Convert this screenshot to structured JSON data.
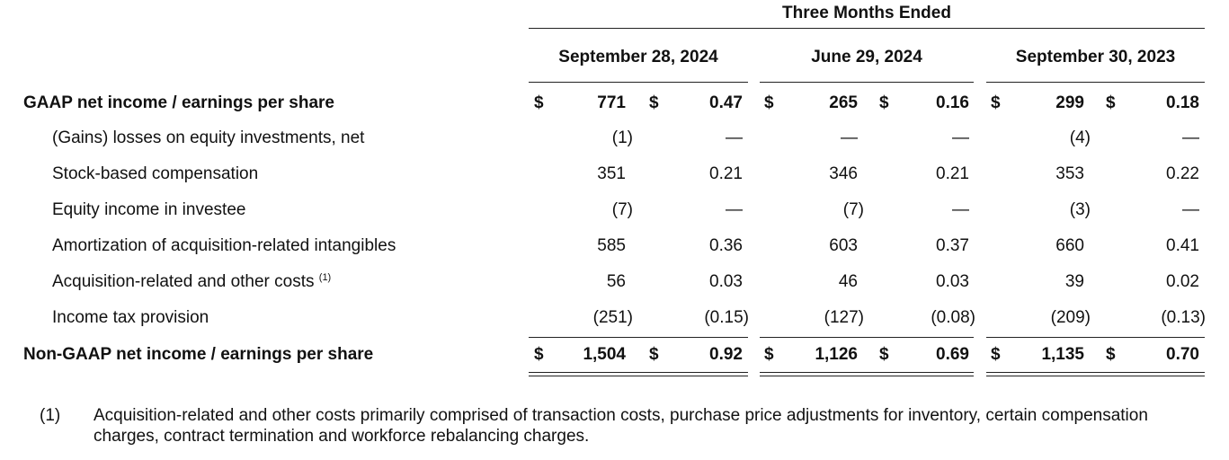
{
  "header": {
    "super_title": "Three Months Ended",
    "periods": [
      "September 28, 2024",
      "June 29, 2024",
      "September 30, 2023"
    ]
  },
  "rows": [
    {
      "label": "GAAP net income / earnings per share",
      "bold": true,
      "currency": true,
      "values": [
        "771",
        "0.47",
        "265",
        "0.16",
        "299",
        "0.18"
      ]
    },
    {
      "label": "(Gains) losses on equity investments, net",
      "values": [
        "(1)",
        "—",
        "—",
        "—",
        "(4)",
        "—"
      ]
    },
    {
      "label": "Stock-based compensation",
      "values": [
        "351",
        "0.21",
        "346",
        "0.21",
        "353",
        "0.22"
      ]
    },
    {
      "label": "Equity income in investee",
      "values": [
        "(7)",
        "—",
        "(7)",
        "—",
        "(3)",
        "—"
      ]
    },
    {
      "label": "Amortization of acquisition-related intangibles",
      "values": [
        "585",
        "0.36",
        "603",
        "0.37",
        "660",
        "0.41"
      ]
    },
    {
      "label": "Acquisition-related and other costs",
      "footnote_ref": "(1)",
      "values": [
        "56",
        "0.03",
        "46",
        "0.03",
        "39",
        "0.02"
      ]
    },
    {
      "label": "Income tax provision",
      "values": [
        "(251)",
        "(0.15)",
        "(127)",
        "(0.08)",
        "(209)",
        "(0.13)"
      ]
    },
    {
      "label": "Non-GAAP net income / earnings per share",
      "bold": true,
      "currency": true,
      "values": [
        "1,504",
        "0.92",
        "1,126",
        "0.69",
        "1,135",
        "0.70"
      ]
    }
  ],
  "currency_symbol": "$",
  "footnote": {
    "marker": "(1)",
    "text": "Acquisition-related and other costs primarily comprised of transaction costs, purchase price adjustments for inventory, certain compensation charges, contract termination and workforce rebalancing charges."
  }
}
